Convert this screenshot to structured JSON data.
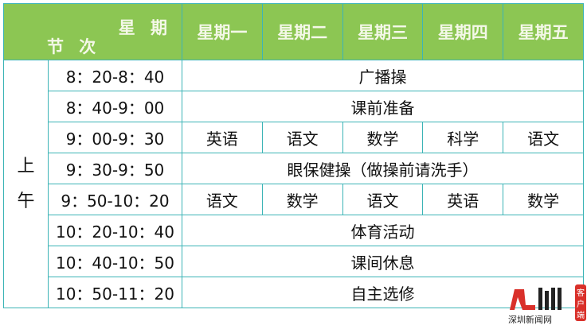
{
  "header": {
    "corner_top": "星 期",
    "corner_bottom": "节 次",
    "days": [
      "星期一",
      "星期二",
      "星期三",
      "星期四",
      "星期五"
    ]
  },
  "section": {
    "label_1": "上",
    "label_2": "午"
  },
  "rows": [
    {
      "time": "8：20-8：40",
      "merged": "广播操"
    },
    {
      "time": "8：40-9：00",
      "merged": "课前准备"
    },
    {
      "time": "9：00-9：30",
      "cells": [
        "英语",
        "语文",
        "数学",
        "科学",
        "语文"
      ]
    },
    {
      "time": "9：30-9：50",
      "merged": "眼保健操（做操前请洗手）"
    },
    {
      "time": "9：50-10：20",
      "cells": [
        "语文",
        "数学",
        "语文",
        "英语",
        "数学"
      ]
    },
    {
      "time": "10：20-10：40",
      "merged": "体育活动"
    },
    {
      "time": "10：40-10：50",
      "merged": "课间休息"
    },
    {
      "time": "10：50-11：20",
      "merged": "自主选修"
    }
  ],
  "watermark": {
    "text": "深圳新闻网",
    "badge": "客户端",
    "colors": {
      "red": "#d9302a"
    }
  },
  "colors": {
    "header_bg": "#8cc653",
    "border": "#3cb4b6"
  }
}
